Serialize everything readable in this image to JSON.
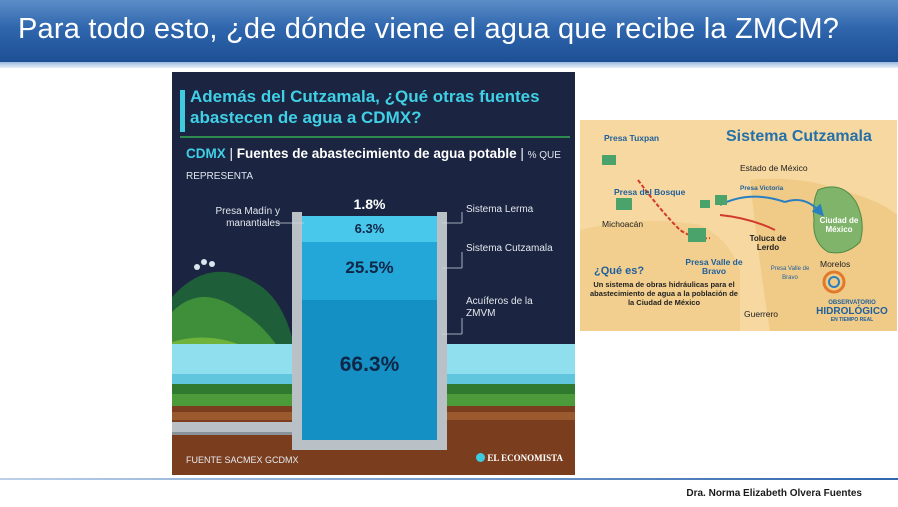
{
  "slide": {
    "title": "Para todo esto, ¿de dónde viene el agua que recibe la ZMCM?",
    "author": "Dra. Norma Elizabeth Olvera Fuentes"
  },
  "infographic": {
    "heading": "Además del Cutzamala, ¿Qué otras fuentes abastecen de agua a CDMX?",
    "subtitle_city": "CDMX",
    "subtitle_sep": " | ",
    "subtitle_main": "Fuentes de abastecimiento de agua potable",
    "subtitle_unit": "% QUE REPRESENTA",
    "sources": [
      {
        "label": "Presa Madín y manantiales",
        "percent": "1.8%",
        "value": 1.8
      },
      {
        "label": "Sistema Lerma",
        "percent": "6.3%",
        "value": 6.3
      },
      {
        "label": "Sistema Cutzamala",
        "percent": "25.5%",
        "value": 25.5
      },
      {
        "label": "Acuíferos de la ZMVM",
        "percent": "66.3%",
        "value": 66.3
      }
    ],
    "footer_source": "FUENTE SACMEX GCDMX",
    "footer_brand": "EL ECONOMISTA",
    "colors": {
      "bg": "#1b2440",
      "accent": "#40d0e6",
      "water_light": "#48c8ea",
      "water_mid": "#22a7d8",
      "water_deep": "#1590c4"
    }
  },
  "map": {
    "title": "Sistema Cutzamala",
    "labels": {
      "presa_tuxpan": "Presa Tuxpan",
      "presa_bosque": "Presa del Bosque",
      "presa_victoria": "Presa Victoria",
      "estado_mexico": "Estado de México",
      "michoacan": "Michoacán",
      "toluca": "Toluca de Lerdo",
      "ciudad_mexico": "Ciudad de México",
      "presa_valle": "Presa Valle de Bravo",
      "valle_bravo": "Presa Valle de Bravo",
      "morelos": "Morelos",
      "guerrero": "Guerrero"
    },
    "que_es": "¿Qué es?",
    "description": "Un sistema de obras hidráulicas para el abastecimiento de agua a la población de la Ciudad de México",
    "observatorio_line1": "OBSERVATORIO",
    "observatorio_line2": "HIDROLÓGICO",
    "observatorio_line3": "EN TIEMPO REAL"
  }
}
